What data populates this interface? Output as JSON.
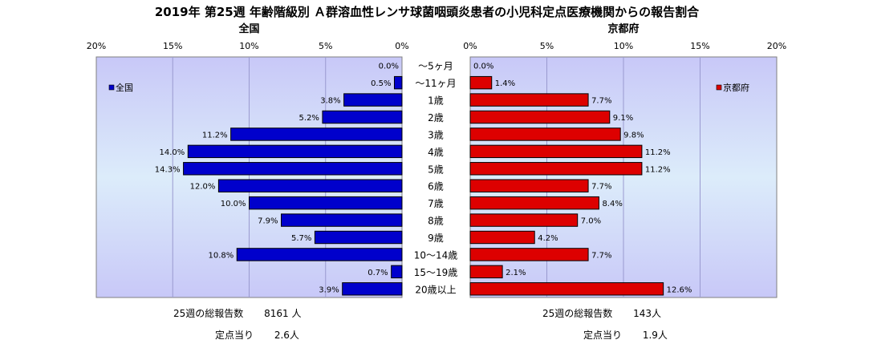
{
  "title": "2019年 第25週 年齢階級別 Ａ群溶血性レンサ球菌咽頭炎患者の小児科定点医療機関からの報告割合",
  "chart_data": {
    "type": "bar",
    "orientation": "horizontal-butterfly",
    "categories": [
      "～5ヶ月",
      "～11ヶ月",
      "1歳",
      "2歳",
      "3歳",
      "4歳",
      "5歳",
      "6歳",
      "7歳",
      "8歳",
      "9歳",
      "10～14歳",
      "15～19歳",
      "20歳以上"
    ],
    "panels": [
      {
        "title": "全国",
        "legend": "全国",
        "legend_position": "top-left",
        "direction": "left",
        "color": "#0000cc",
        "xlim": [
          0,
          20
        ],
        "ticks": [
          "0%",
          "5%",
          "10%",
          "15%",
          "20%"
        ],
        "tick_values": [
          0,
          5,
          10,
          15,
          20
        ],
        "values": [
          0.0,
          0.5,
          3.8,
          5.2,
          11.2,
          14.0,
          14.3,
          12.0,
          10.0,
          7.9,
          5.7,
          10.8,
          0.7,
          3.9
        ],
        "labels": [
          "0.0%",
          "0.5%",
          "3.8%",
          "5.2%",
          "11.2%",
          "14.0%",
          "14.3%",
          "12.0%",
          "10.0%",
          "7.9%",
          "5.7%",
          "10.8%",
          "0.7%",
          "3.9%"
        ]
      },
      {
        "title": "京都府",
        "legend": "京都府",
        "legend_position": "top-right",
        "direction": "right",
        "color": "#dd0000",
        "xlim": [
          0,
          20
        ],
        "ticks": [
          "0%",
          "5%",
          "10%",
          "15%",
          "20%"
        ],
        "tick_values": [
          0,
          5,
          10,
          15,
          20
        ],
        "values": [
          0.0,
          1.4,
          7.7,
          9.1,
          9.8,
          11.2,
          11.2,
          7.7,
          8.4,
          7.0,
          4.2,
          7.7,
          2.1,
          12.6
        ],
        "labels": [
          "0.0%",
          "1.4%",
          "7.7%",
          "9.1%",
          "9.8%",
          "11.2%",
          "11.2%",
          "7.7%",
          "8.4%",
          "7.0%",
          "4.2%",
          "7.7%",
          "2.1%",
          "12.6%"
        ]
      }
    ]
  },
  "footer": {
    "left_total_label": "25週の総報告数",
    "left_total_value": "8161 人",
    "left_per_label": "定点当り",
    "left_per_value": "2.6人",
    "right_total_label": "25週の総報告数",
    "right_total_value": "143人",
    "right_per_label": "定点当り",
    "right_per_value": "1.9人"
  }
}
